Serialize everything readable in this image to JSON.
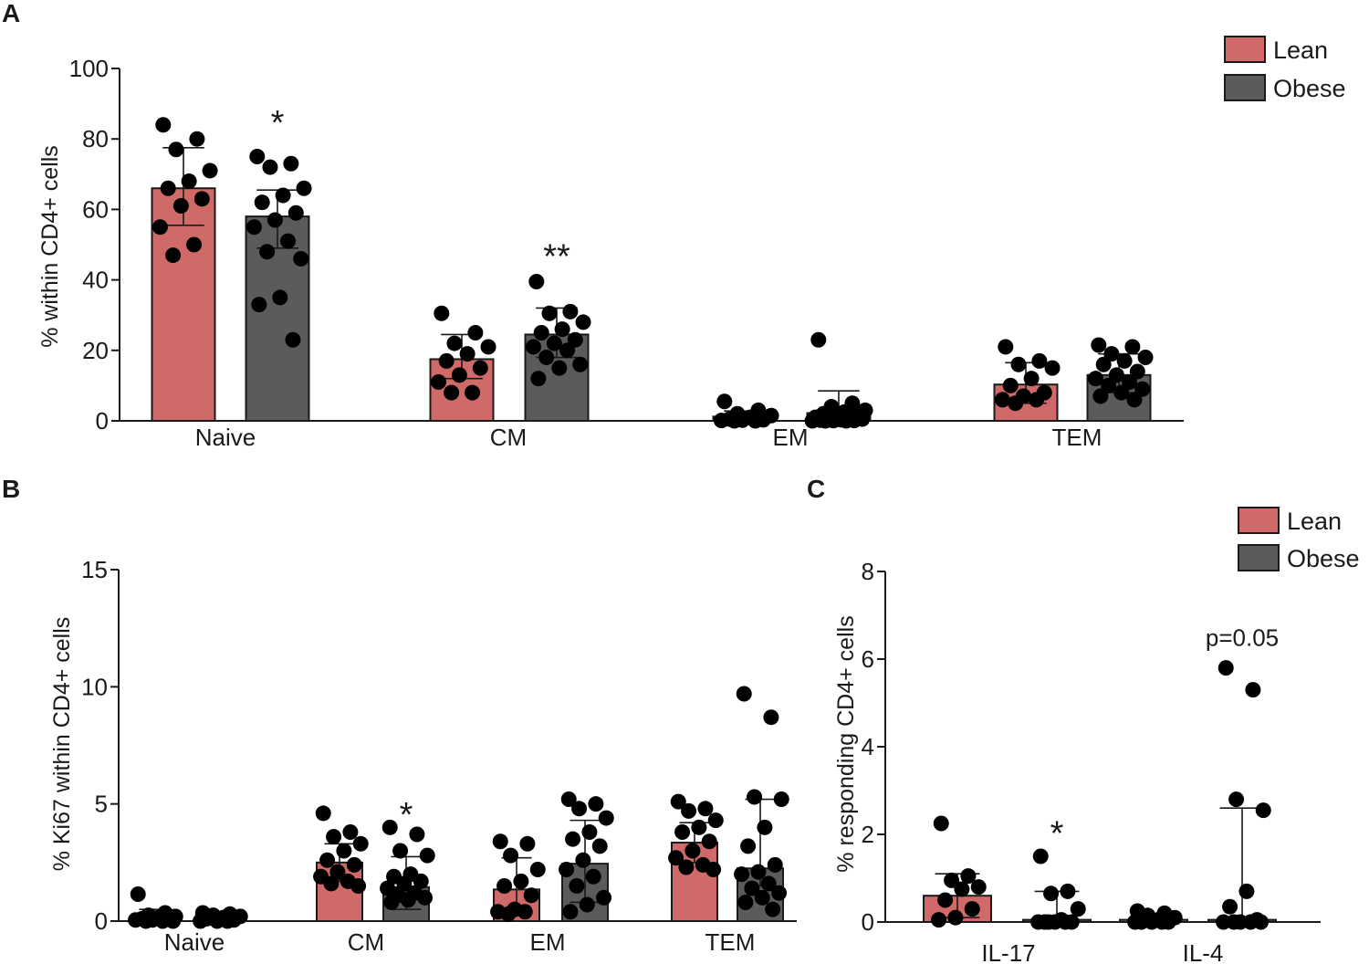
{
  "colors": {
    "lean": "#d06a69",
    "obese": "#5a5b5d"
  },
  "chart_data": [
    {
      "panel": "A",
      "type": "bar",
      "ylabel": "% within CD4+ cells",
      "ylim": [
        0,
        100
      ],
      "yticks": [
        0,
        20,
        40,
        60,
        80,
        100
      ],
      "categories": [
        "Naive",
        "CM",
        "EM",
        "TEM"
      ],
      "legend": [
        "Lean",
        "Obese"
      ],
      "series": [
        {
          "name": "Lean",
          "color_key": "lean",
          "values": [
            66,
            17.5,
            1.2,
            10.3
          ],
          "errors": [
            [
              55.5,
              77.5
            ],
            [
              12,
              24.5
            ],
            [
              0.2,
              2.8
            ],
            [
              5,
              16.5
            ]
          ],
          "points": [
            [
              84,
              80,
              77,
              71,
              68,
              66,
              63,
              61,
              55,
              50,
              47
            ],
            [
              30.5,
              25,
              22,
              21,
              19,
              17,
              15,
              13,
              11,
              8,
              8
            ],
            [
              5.5,
              3,
              2,
              1.5,
              1,
              0.5,
              0.3,
              0.2,
              0.1,
              0,
              0
            ],
            [
              21,
              17,
              16,
              15,
              12,
              10,
              8,
              7,
              6,
              6,
              5
            ]
          ]
        },
        {
          "name": "Obese",
          "color_key": "obese",
          "values": [
            58,
            24.5,
            2.2,
            13
          ],
          "errors": [
            [
              49,
              65.5
            ],
            [
              18,
              32
            ],
            [
              0,
              8.5
            ],
            [
              8,
              19
            ]
          ],
          "points": [
            [
              75,
              73,
              72,
              66,
              64,
              62,
              59,
              57,
              55,
              51,
              48,
              46,
              35,
              33,
              23
            ],
            [
              39.5,
              31,
              30.5,
              28,
              26,
              25,
              23,
              22,
              21,
              20,
              18,
              16,
              15,
              12
            ],
            [
              23,
              5,
              4,
              3,
              2.5,
              2,
              1.5,
              1.5,
              1,
              1,
              0.5,
              0.5,
              0.3,
              0.2,
              0.1,
              0.05,
              0,
              0,
              0
            ],
            [
              21.5,
              21,
              19,
              18,
              17,
              16,
              14,
              13,
              12,
              11,
              10,
              9,
              8,
              7,
              6
            ]
          ]
        }
      ],
      "annotations": [
        {
          "category": "Naive",
          "series": "Obese",
          "text": "*",
          "y": 85
        },
        {
          "category": "CM",
          "series": "Obese",
          "text": "**",
          "y": 47
        }
      ]
    },
    {
      "panel": "B",
      "type": "bar",
      "ylabel": "% Ki67 within CD4+ cells",
      "ylim": [
        0,
        15
      ],
      "yticks": [
        0,
        5,
        10,
        15
      ],
      "categories": [
        "Naive",
        "CM",
        "EM",
        "TEM"
      ],
      "series": [
        {
          "name": "Lean",
          "color_key": "lean",
          "values": [
            0.15,
            2.5,
            1.35,
            3.35
          ],
          "errors": [
            [
              0,
              0.5
            ],
            [
              1.7,
              3.3
            ],
            [
              0.4,
              2.7
            ],
            [
              2.5,
              4.2
            ]
          ],
          "points": [
            [
              1.15,
              0.35,
              0.25,
              0.2,
              0.15,
              0.1,
              0.1,
              0.05,
              0.05,
              0,
              0,
              0
            ],
            [
              4.6,
              3.8,
              3.6,
              3.3,
              3.0,
              2.6,
              2.4,
              2.1,
              1.9,
              1.7,
              1.6,
              1.5
            ],
            [
              3.4,
              3.3,
              2.8,
              2.2,
              1.7,
              1.5,
              1.1,
              0.5,
              0.4,
              0.4,
              0.3
            ],
            [
              5.1,
              4.8,
              4.7,
              4.3,
              4.0,
              3.8,
              3.4,
              3.0,
              2.7,
              2.4,
              2.3,
              2.2
            ]
          ]
        },
        {
          "name": "Obese",
          "color_key": "obese",
          "values": [
            0.1,
            1.45,
            2.45,
            2.25
          ],
          "errors": [
            [
              0,
              0.3
            ],
            [
              0.5,
              2.75
            ],
            [
              0.8,
              4.3
            ],
            [
              1.5,
              5.2
            ]
          ],
          "points": [
            [
              0.35,
              0.3,
              0.25,
              0.2,
              0.15,
              0.1,
              0.05,
              0,
              0,
              0
            ],
            [
              4.0,
              3.7,
              3.0,
              2.8,
              2.0,
              1.9,
              1.7,
              1.6,
              1.4,
              1.2,
              1.1,
              1.0,
              0.9,
              0.8
            ],
            [
              5.2,
              5.0,
              4.8,
              4.4,
              3.8,
              3.5,
              3.2,
              2.6,
              2.2,
              1.9,
              1.5,
              1.0,
              0.7,
              0.4
            ],
            [
              9.7,
              8.7,
              5.3,
              5.2,
              4.0,
              3.2,
              2.4,
              2.1,
              2.0,
              1.6,
              1.4,
              1.2,
              1.0,
              0.8,
              0.5
            ]
          ]
        }
      ],
      "annotations": [
        {
          "category": "CM",
          "series": "Obese",
          "text": "*",
          "y": 4.6
        }
      ]
    },
    {
      "panel": "C",
      "type": "bar",
      "ylabel": "% responding CD4+ cells",
      "ylim": [
        0,
        8
      ],
      "yticks": [
        0,
        2,
        4,
        6,
        8
      ],
      "categories": [
        "IL-17",
        "IL-4"
      ],
      "legend": [
        "Lean",
        "Obese"
      ],
      "series": [
        {
          "name": "Lean",
          "color_key": "lean",
          "values": [
            0.6,
            0.05
          ],
          "errors": [
            [
              0.1,
              1.1
            ],
            [
              0,
              0.1
            ]
          ],
          "points": [
            [
              2.25,
              1.05,
              0.95,
              0.8,
              0.75,
              0.5,
              0.3,
              0.1,
              0.05
            ],
            [
              0.25,
              0.2,
              0.15,
              0.1,
              0.05,
              0,
              0,
              0,
              0,
              0
            ]
          ]
        },
        {
          "name": "Obese",
          "color_key": "obese",
          "values": [
            0.05,
            0.05
          ],
          "errors": [
            [
              0,
              0.7
            ],
            [
              0,
              2.6
            ]
          ],
          "points": [
            [
              1.5,
              0.7,
              0.65,
              0.3,
              0.05,
              0,
              0,
              0,
              0,
              0,
              0
            ],
            [
              5.8,
              5.3,
              2.8,
              2.55,
              0.7,
              0.35,
              0.05,
              0,
              0,
              0,
              0,
              0
            ]
          ]
        }
      ],
      "annotations": [
        {
          "category": "IL-17",
          "series": "Obese",
          "text": "*",
          "y": 2.05
        },
        {
          "category": "IL-4",
          "series": "Obese",
          "text": "p=0.05",
          "y": 6.3
        }
      ]
    }
  ]
}
